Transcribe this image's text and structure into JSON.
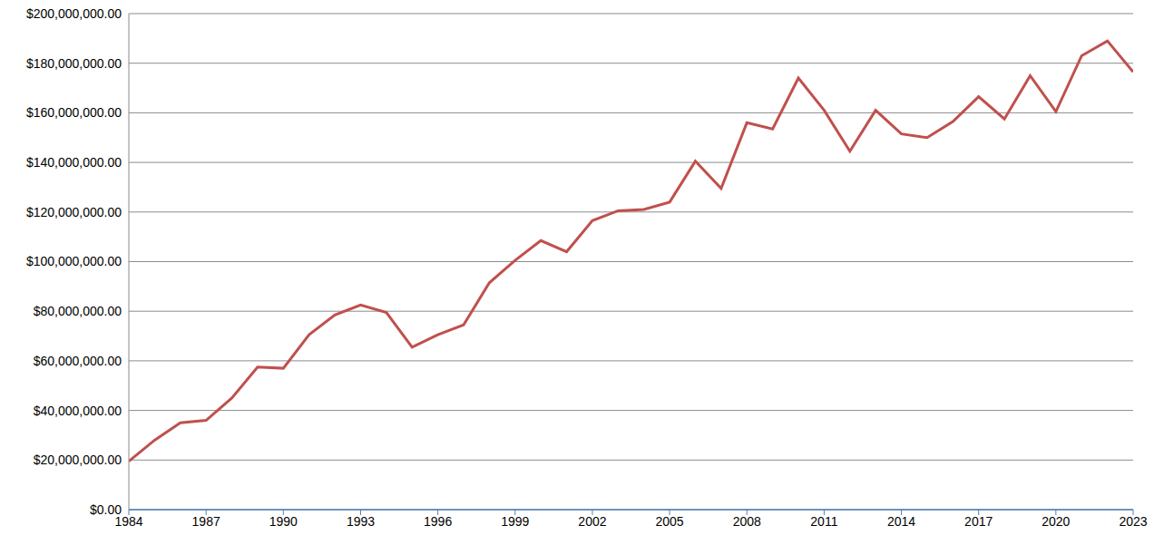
{
  "chart_data": {
    "type": "line",
    "x": [
      1984,
      1985,
      1986,
      1987,
      1988,
      1989,
      1990,
      1991,
      1992,
      1993,
      1994,
      1995,
      1996,
      1997,
      1998,
      1999,
      2000,
      2001,
      2002,
      2003,
      2004,
      2005,
      2006,
      2007,
      2008,
      2009,
      2010,
      2011,
      2012,
      2013,
      2014,
      2015,
      2016,
      2017,
      2018,
      2019,
      2020,
      2021,
      2022,
      2023
    ],
    "values": [
      19500000,
      28000000,
      35000000,
      36000000,
      45000000,
      57500000,
      57000000,
      70500000,
      78500000,
      82500000,
      79500000,
      65500000,
      70500000,
      74500000,
      91500000,
      100500000,
      108500000,
      104000000,
      116500000,
      120500000,
      121000000,
      124000000,
      140500000,
      129500000,
      156000000,
      153500000,
      174000000,
      161000000,
      144500000,
      161000000,
      151500000,
      150000000,
      156500000,
      166500000,
      157500000,
      175000000,
      160500000,
      183000000,
      189000000,
      176500000
    ],
    "color": "#c0504d",
    "xlim": [
      1984,
      2023
    ],
    "xticks": [
      1984,
      1987,
      1990,
      1993,
      1996,
      1999,
      2002,
      2005,
      2008,
      2011,
      2014,
      2017,
      2020,
      2023
    ],
    "ylim": [
      0,
      200000000
    ],
    "yticks": [
      {
        "value": 0,
        "label": "$0.00"
      },
      {
        "value": 20000000,
        "label": "$20,000,000.00"
      },
      {
        "value": 40000000,
        "label": "$40,000,000.00"
      },
      {
        "value": 60000000,
        "label": "$60,000,000.00"
      },
      {
        "value": 80000000,
        "label": "$80,000,000.00"
      },
      {
        "value": 100000000,
        "label": "$100,000,000.00"
      },
      {
        "value": 120000000,
        "label": "$120,000,000.00"
      },
      {
        "value": 140000000,
        "label": "$140,000,000.00"
      },
      {
        "value": 160000000,
        "label": "$160,000,000.00"
      },
      {
        "value": 180000000,
        "label": "$180,000,000.00"
      },
      {
        "value": 200000000,
        "label": "$200,000,000.00"
      }
    ],
    "grid": true
  }
}
